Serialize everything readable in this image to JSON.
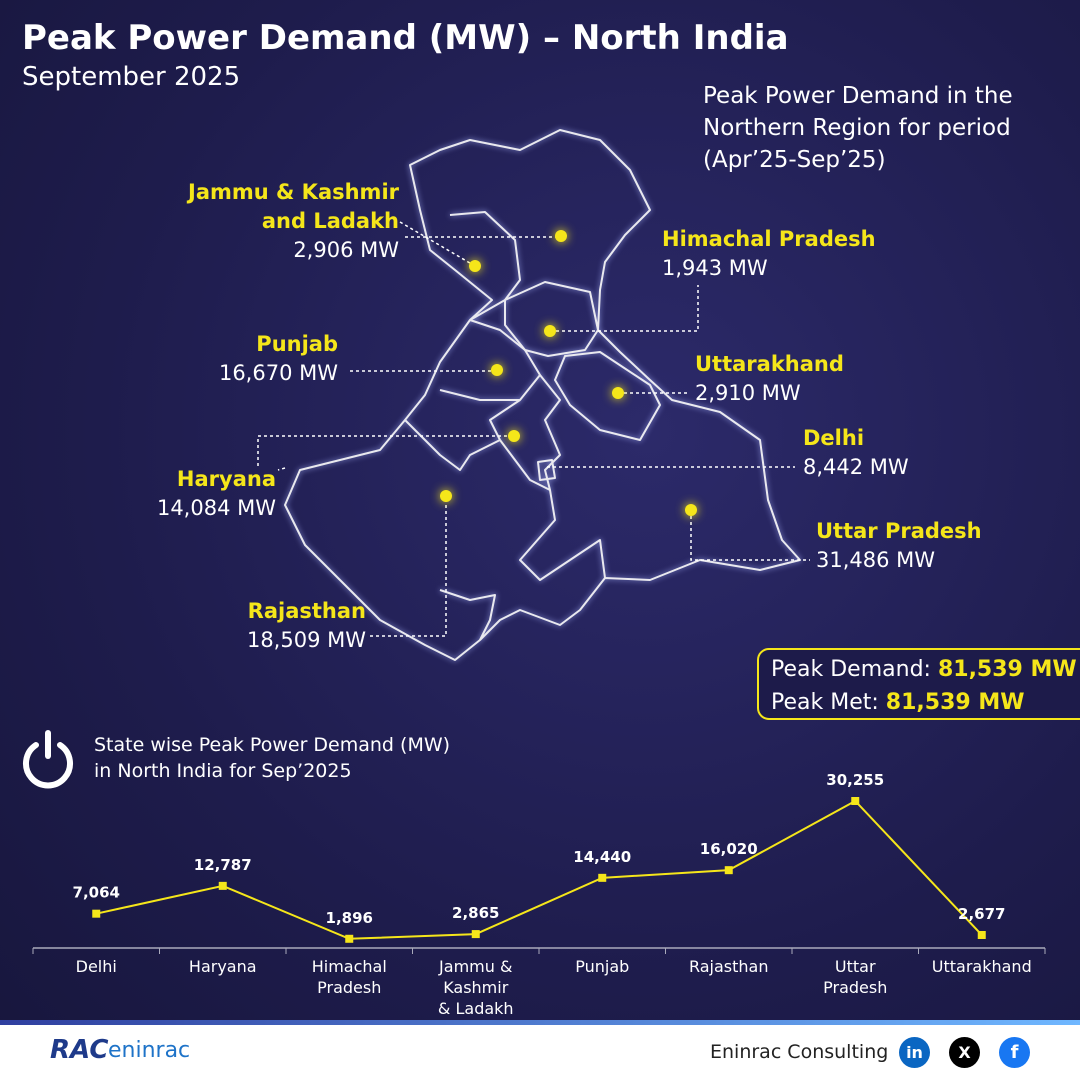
{
  "title": "Peak Power Demand (MW) – North India",
  "subtitle": "September 2025",
  "map": {
    "caption": [
      "Peak Power Demand in the",
      "Northern Region for period",
      "(Apr’25-Sep’25)"
    ],
    "states": [
      {
        "name": [
          "Jammu & Kashmir",
          "and Ladakh"
        ],
        "value": "2,906 MW"
      },
      {
        "name": [
          "Himachal Pradesh"
        ],
        "value": "1,943 MW"
      },
      {
        "name": [
          "Punjab"
        ],
        "value": "16,670 MW"
      },
      {
        "name": [
          "Uttarakhand"
        ],
        "value": "2,910 MW"
      },
      {
        "name": [
          "Haryana"
        ],
        "value": "14,084 MW"
      },
      {
        "name": [
          "Delhi"
        ],
        "value": "8,442 MW"
      },
      {
        "name": [
          "Uttar Pradesh"
        ],
        "value": "31,486 MW"
      },
      {
        "name": [
          "Rajasthan"
        ],
        "value": "18,509 MW"
      }
    ]
  },
  "summary": {
    "demand_label": "Peak Demand:",
    "demand_value": "81,539 MW",
    "met_label": "Peak Met:",
    "met_value": "81,539 MW"
  },
  "chart_data": {
    "type": "line",
    "title": [
      "State wise Peak Power Demand (MW)",
      "in North India for Sep’2025"
    ],
    "categories": [
      "Delhi",
      "Haryana",
      "Himachal Pradesh",
      "Jammu & Kashmir & Ladakh",
      "Punjab",
      "Rajasthan",
      "Uttar Pradesh",
      "Uttarakhand"
    ],
    "series": [
      {
        "name": "Peak Power Demand",
        "color": "#f5e61a",
        "values": [
          7064,
          12787,
          1896,
          2865,
          14440,
          16020,
          30255,
          2677
        ],
        "value_labels": [
          "7,064",
          "12,787",
          "1,896",
          "2,865",
          "14,440",
          "16,020",
          "30,255",
          "2,677"
        ]
      }
    ]
  },
  "footer": {
    "logo_a": "RAC",
    "logo_b": "eninrac",
    "company": "Eninrac Consulting",
    "social": [
      "in",
      "X",
      "f"
    ]
  }
}
